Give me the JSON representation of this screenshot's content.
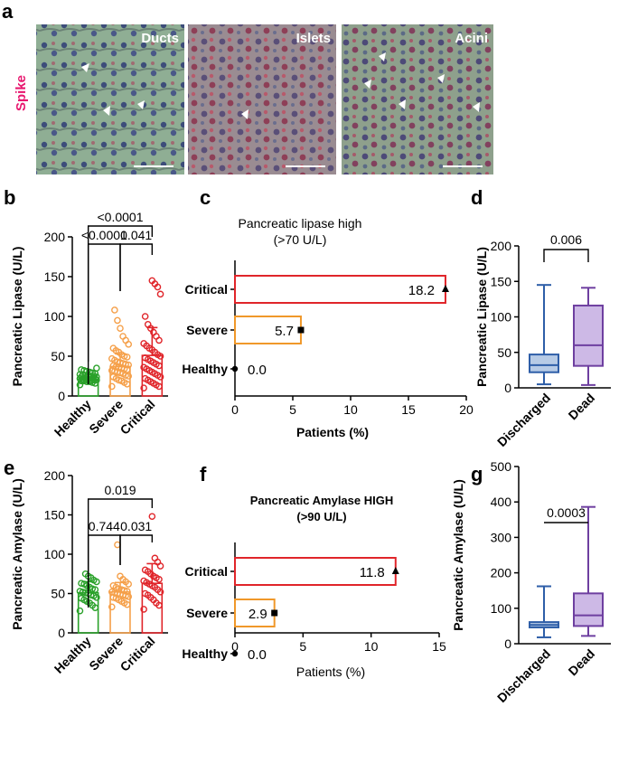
{
  "panel_a": {
    "letter": "a",
    "stain_label": "Spike",
    "tiles": [
      {
        "label": "Ducts"
      },
      {
        "label": "Islets"
      },
      {
        "label": "Acini"
      }
    ]
  },
  "chart_data": [
    {
      "panel": "b",
      "type": "bar",
      "categories": [
        "Healthy",
        "Severe",
        "Critical"
      ],
      "values": [
        21,
        37,
        51
      ],
      "errors": [
        3,
        16,
        35
      ],
      "colors": [
        "#2aa12a",
        "#f5a04a",
        "#e0252a"
      ],
      "ylabel": "Pancreatic Lipase (U/L)",
      "ylim": [
        0,
        200
      ],
      "yticks": [
        "0",
        "50",
        "100",
        "150",
        "200"
      ],
      "comparisons": [
        {
          "from": 0,
          "to": 2,
          "label": "<0.0001"
        },
        {
          "from": 0,
          "to": 1,
          "label": "<0.0001"
        },
        {
          "from": 1,
          "to": 2,
          "label": "0.041"
        }
      ],
      "points": [
        [
          14,
          16,
          17,
          18,
          18,
          19,
          19,
          20,
          20,
          20,
          21,
          21,
          21,
          22,
          22,
          22,
          23,
          23,
          23,
          24,
          24,
          25,
          25,
          26,
          26,
          27,
          27,
          28,
          29,
          30,
          31,
          32,
          33,
          35
        ],
        [
          12,
          15,
          17,
          19,
          20,
          22,
          24,
          25,
          26,
          28,
          29,
          30,
          31,
          32,
          33,
          34,
          35,
          36,
          37,
          38,
          39,
          40,
          41,
          42,
          43,
          45,
          47,
          49,
          50,
          52,
          55,
          57,
          60,
          65,
          70,
          75,
          85,
          95,
          108
        ],
        [
          10,
          12,
          14,
          16,
          18,
          20,
          22,
          24,
          26,
          28,
          30,
          32,
          34,
          36,
          38,
          40,
          42,
          44,
          46,
          48,
          50,
          52,
          55,
          58,
          60,
          63,
          66,
          70,
          75,
          80,
          85,
          90,
          100,
          128,
          137,
          141,
          145
        ]
      ]
    },
    {
      "panel": "c",
      "type": "bar",
      "orientation": "horizontal",
      "title": "Pancreatic lipase high",
      "subtitle": "(>70 U/L)",
      "categories": [
        "Critical",
        "Severe",
        "Healthy"
      ],
      "values": [
        18.2,
        5.7,
        0.0
      ],
      "value_labels": [
        "18.2",
        "5.7",
        "0.0"
      ],
      "colors": [
        "#e0252a",
        "#f0982a",
        "#000000"
      ],
      "xlabel": "Patients (%)",
      "xlim": [
        0,
        20
      ],
      "xticks": [
        "0",
        "5",
        "10",
        "15",
        "20"
      ]
    },
    {
      "panel": "d",
      "type": "box",
      "categories": [
        "Discharged",
        "Dead"
      ],
      "boxes": [
        {
          "min": 5,
          "q1": 22,
          "median": 32,
          "q3": 47,
          "max": 145
        },
        {
          "min": 4,
          "q1": 31,
          "median": 60,
          "q3": 116,
          "max": 141
        }
      ],
      "edge_colors": [
        "#2e5ea8",
        "#6e3fa0"
      ],
      "fill_colors": [
        "#b7cbe6",
        "#cdb9e6"
      ],
      "ylabel": "Pancreatic Lipase (U/L)",
      "ylim": [
        0,
        200
      ],
      "yticks": [
        "0",
        "50",
        "100",
        "150",
        "200"
      ],
      "comparison": {
        "label": "0.006"
      }
    },
    {
      "panel": "e",
      "type": "bar",
      "categories": [
        "Healthy",
        "Severe",
        "Critical"
      ],
      "values": [
        51,
        52,
        63
      ],
      "errors": [
        14,
        12,
        25
      ],
      "colors": [
        "#2aa12a",
        "#f5a04a",
        "#e0252a"
      ],
      "ylabel": "Pancreatic Amylase (U/L)",
      "ylim": [
        0,
        200
      ],
      "yticks": [
        "0",
        "50",
        "100",
        "150",
        "200"
      ],
      "comparisons": [
        {
          "from": 0,
          "to": 2,
          "label": "0.019"
        },
        {
          "from": 0,
          "to": 1,
          "label": "0.744"
        },
        {
          "from": 1,
          "to": 2,
          "label": "0.031"
        }
      ],
      "points": [
        [
          28,
          32,
          35,
          38,
          40,
          42,
          44,
          45,
          47,
          48,
          50,
          51,
          52,
          53,
          55,
          56,
          58,
          60,
          62,
          63,
          65,
          67,
          70,
          72,
          75
        ],
        [
          33,
          36,
          38,
          40,
          42,
          44,
          45,
          46,
          47,
          48,
          49,
          50,
          51,
          52,
          53,
          54,
          55,
          56,
          58,
          60,
          62,
          65,
          68,
          72,
          112
        ],
        [
          30,
          35,
          38,
          42,
          45,
          48,
          50,
          52,
          55,
          58,
          60,
          62,
          64,
          66,
          68,
          70,
          72,
          75,
          78,
          80,
          85,
          90,
          95,
          148
        ]
      ]
    },
    {
      "panel": "f",
      "type": "bar",
      "orientation": "horizontal",
      "title": "Pancreatic Amylase HIGH",
      "subtitle": "(>90 U/L)",
      "categories": [
        "Critical",
        "Severe",
        "Healthy"
      ],
      "values": [
        11.8,
        2.9,
        0.0
      ],
      "value_labels": [
        "11.8",
        "2.9",
        "0.0"
      ],
      "colors": [
        "#e0252a",
        "#f0982a",
        "#000000"
      ],
      "xlabel": "Patients (%)",
      "xlim": [
        0,
        15
      ],
      "xticks": [
        "0",
        "5",
        "10",
        "15"
      ]
    },
    {
      "panel": "g",
      "type": "box",
      "categories": [
        "Discharged",
        "Dead"
      ],
      "boxes": [
        {
          "min": 18,
          "q1": 46,
          "median": 53,
          "q3": 61,
          "max": 162
        },
        {
          "min": 22,
          "q1": 50,
          "median": 80,
          "q3": 142,
          "max": 386
        }
      ],
      "edge_colors": [
        "#2e5ea8",
        "#6e3fa0"
      ],
      "fill_colors": [
        "#b7cbe6",
        "#cdb9e6"
      ],
      "ylabel": "Pancreatic Amylase (U/L)",
      "ylim": [
        0,
        500
      ],
      "yticks": [
        "0",
        "100",
        "200",
        "300",
        "400",
        "500"
      ],
      "comparison": {
        "label": "0.0003"
      }
    }
  ]
}
